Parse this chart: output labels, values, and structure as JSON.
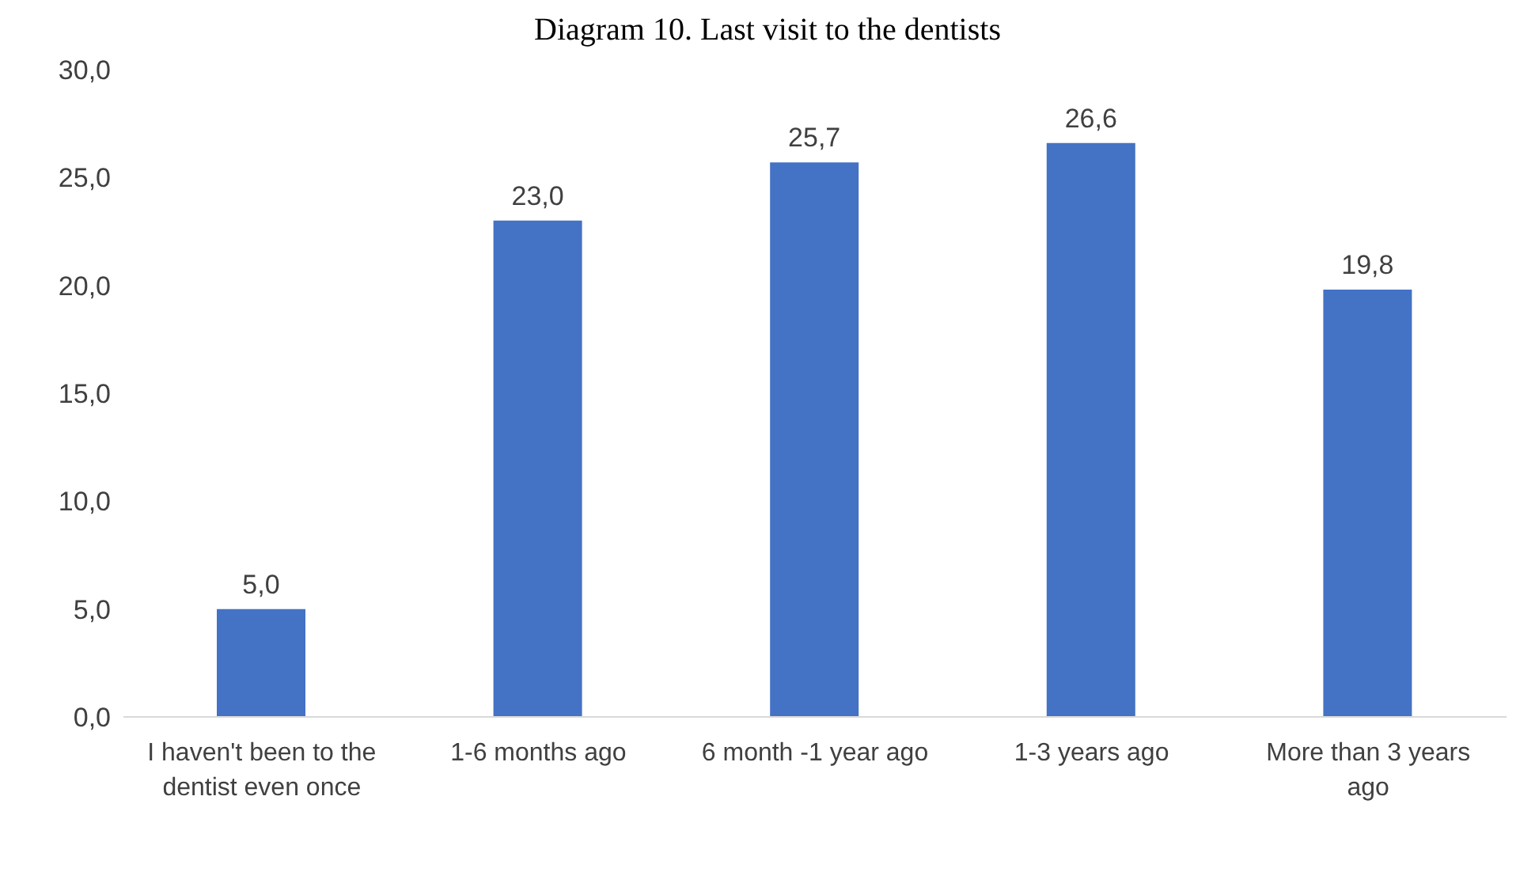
{
  "chart_data": {
    "type": "bar",
    "title": "Diagram 10. Last visit to the dentists",
    "categories": [
      "I haven't been to the dentist even once",
      "1-6 months ago",
      "6 month -1 year ago",
      "1-3 years ago",
      "More than 3 years ago"
    ],
    "values": [
      5.0,
      23.0,
      25.7,
      26.6,
      19.8
    ],
    "value_labels": [
      "5,0",
      "23,0",
      "25,7",
      "26,6",
      "19,8"
    ],
    "color": "#4472c4",
    "ylim": [
      0,
      30
    ],
    "yticks": [
      {
        "value": 0,
        "label": "0,0"
      },
      {
        "value": 5,
        "label": "5,0"
      },
      {
        "value": 10,
        "label": "10,0"
      },
      {
        "value": 15,
        "label": "15,0"
      },
      {
        "value": 20,
        "label": "20,0"
      },
      {
        "value": 25,
        "label": "25,0"
      },
      {
        "value": 30,
        "label": "30,0"
      }
    ],
    "grid": false,
    "legend": false
  }
}
